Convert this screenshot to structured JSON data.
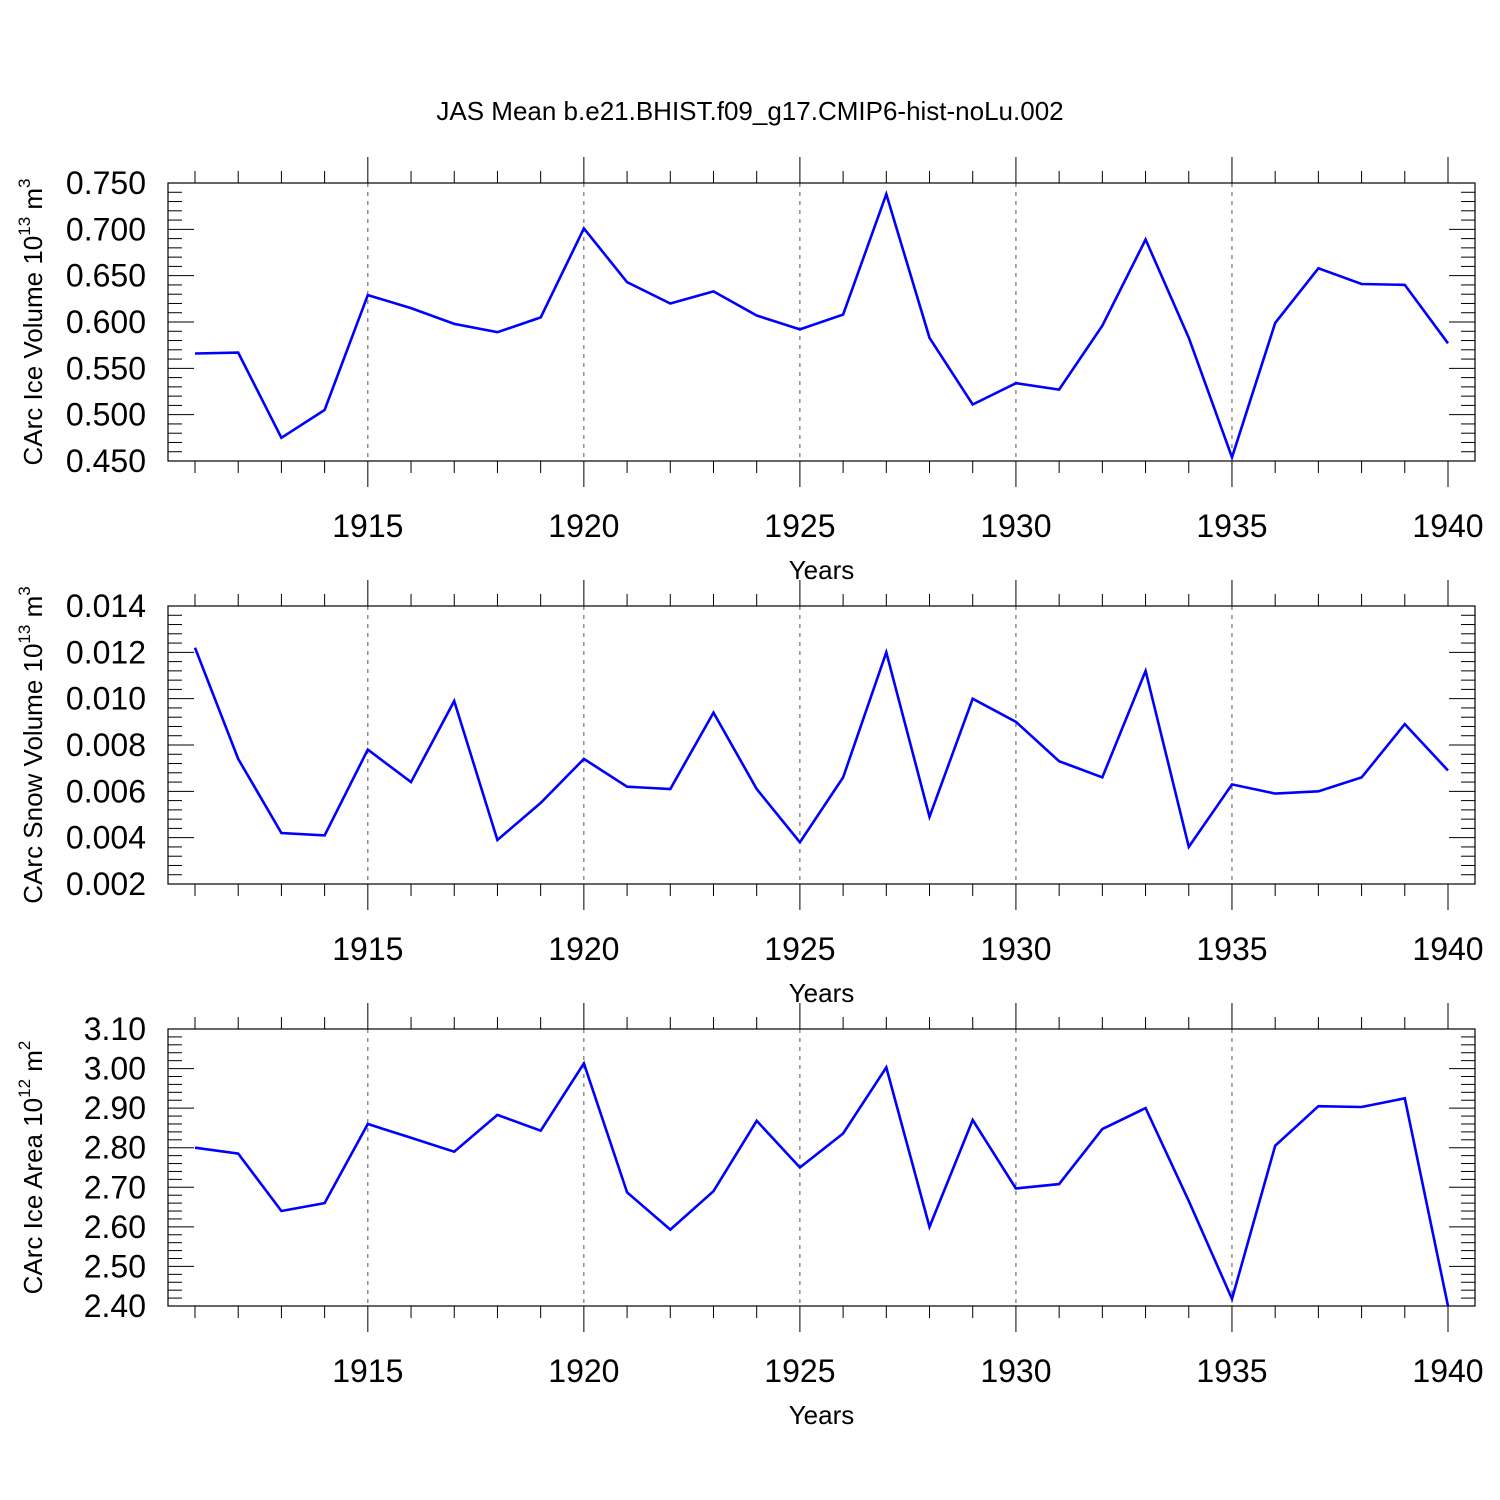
{
  "title": "JAS Mean b.e21.BHIST.f09_g17.CMIP6-hist-noLu.002",
  "line_color": "#0000ff",
  "chart_data": [
    {
      "type": "line",
      "ylabel": "CArc Ice Volume 10",
      "ylabel_exp": "13",
      "ylabel_unit": " m",
      "ylabel_unit_exp": "3",
      "xlabel": "Years",
      "xlim": [
        1911,
        1940
      ],
      "ylim": [
        0.45,
        0.75
      ],
      "yticks": [
        "0.450",
        "0.500",
        "0.550",
        "0.600",
        "0.650",
        "0.700",
        "0.750"
      ],
      "xticks": [
        "1915",
        "1920",
        "1925",
        "1930",
        "1935",
        "1940"
      ],
      "x": [
        1911,
        1912,
        1913,
        1914,
        1915,
        1916,
        1917,
        1918,
        1919,
        1920,
        1921,
        1922,
        1923,
        1924,
        1925,
        1926,
        1927,
        1928,
        1929,
        1930,
        1931,
        1932,
        1933,
        1934,
        1935,
        1936,
        1937,
        1938,
        1939,
        1940
      ],
      "series": [
        {
          "values": [
            0.566,
            0.567,
            0.475,
            0.505,
            0.629,
            0.615,
            0.598,
            0.589,
            0.605,
            0.701,
            0.643,
            0.62,
            0.633,
            0.607,
            0.592,
            0.608,
            0.738,
            0.583,
            0.511,
            0.534,
            0.527,
            0.596,
            0.689,
            0.583,
            0.454,
            0.599,
            0.658,
            0.641,
            0.64,
            0.577
          ]
        }
      ]
    },
    {
      "type": "line",
      "ylabel": "CArc Snow Volume 10",
      "ylabel_exp": "13",
      "ylabel_unit": " m",
      "ylabel_unit_exp": "3",
      "xlabel": "Years",
      "xlim": [
        1911,
        1940
      ],
      "ylim": [
        0.002,
        0.014
      ],
      "yticks": [
        "0.002",
        "0.004",
        "0.006",
        "0.008",
        "0.010",
        "0.012",
        "0.014"
      ],
      "xticks": [
        "1915",
        "1920",
        "1925",
        "1930",
        "1935",
        "1940"
      ],
      "x": [
        1911,
        1912,
        1913,
        1914,
        1915,
        1916,
        1917,
        1918,
        1919,
        1920,
        1921,
        1922,
        1923,
        1924,
        1925,
        1926,
        1927,
        1928,
        1929,
        1930,
        1931,
        1932,
        1933,
        1934,
        1935,
        1936,
        1937,
        1938,
        1939,
        1940
      ],
      "series": [
        {
          "values": [
            0.0122,
            0.0074,
            0.0042,
            0.0041,
            0.0078,
            0.0064,
            0.0099,
            0.0039,
            0.0055,
            0.0074,
            0.0062,
            0.0061,
            0.0094,
            0.0061,
            0.0038,
            0.0066,
            0.012,
            0.0049,
            0.01,
            0.009,
            0.0073,
            0.0066,
            0.0112,
            0.0036,
            0.0063,
            0.0059,
            0.006,
            0.0066,
            0.0089,
            0.0069
          ]
        }
      ]
    },
    {
      "type": "line",
      "ylabel": "CArc Ice Area 10",
      "ylabel_exp": "12",
      "ylabel_unit": " m",
      "ylabel_unit_exp": "2",
      "xlabel": "Years",
      "xlim": [
        1911,
        1940
      ],
      "ylim": [
        2.4,
        3.1
      ],
      "yticks": [
        "2.40",
        "2.50",
        "2.60",
        "2.70",
        "2.80",
        "2.90",
        "3.00",
        "3.10"
      ],
      "xticks": [
        "1915",
        "1920",
        "1925",
        "1930",
        "1935",
        "1940"
      ],
      "x": [
        1911,
        1912,
        1913,
        1914,
        1915,
        1916,
        1917,
        1918,
        1919,
        1920,
        1921,
        1922,
        1923,
        1924,
        1925,
        1926,
        1927,
        1928,
        1929,
        1930,
        1931,
        1932,
        1933,
        1934,
        1935,
        1936,
        1937,
        1938,
        1939,
        1940
      ],
      "series": [
        {
          "values": [
            2.8,
            2.785,
            2.64,
            2.66,
            2.86,
            2.825,
            2.79,
            2.883,
            2.843,
            3.013,
            2.687,
            2.593,
            2.69,
            2.868,
            2.75,
            2.836,
            3.003,
            2.6,
            2.87,
            2.697,
            2.708,
            2.847,
            2.9,
            2.665,
            2.418,
            2.805,
            2.905,
            2.903,
            2.925,
            2.4
          ]
        }
      ]
    }
  ]
}
